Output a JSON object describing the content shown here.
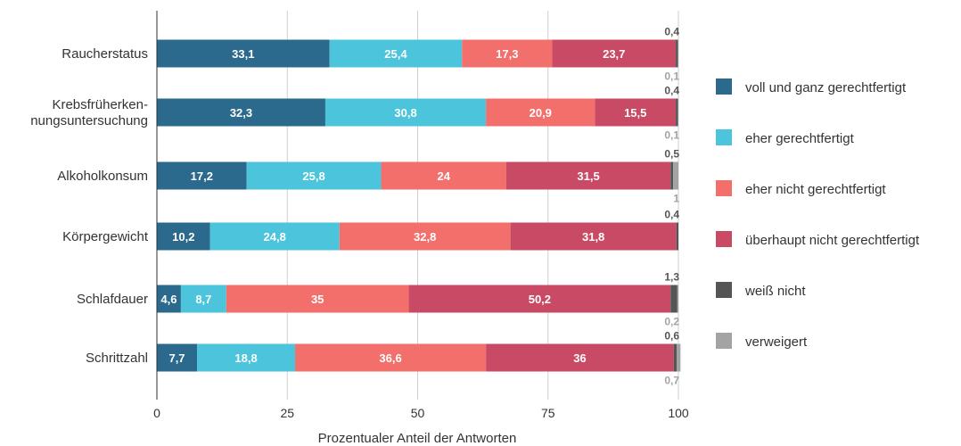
{
  "chart_data": {
    "type": "bar",
    "orientation": "horizontal",
    "stacked": true,
    "categories": [
      [
        "Raucherstatus"
      ],
      [
        "Krebsfrüherken-",
        "nungsuntersuchung"
      ],
      [
        "Alkoholkonsum"
      ],
      [
        "Körpergewicht"
      ],
      [
        "Schlafdauer"
      ],
      [
        "Schrittzahl"
      ]
    ],
    "series": [
      {
        "name": "voll und ganz gerechtfertigt",
        "color": "#2b6a8c",
        "values": [
          33.1,
          32.3,
          17.2,
          10.2,
          4.6,
          7.7
        ]
      },
      {
        "name": "eher gerechtfertigt",
        "color": "#4bc4dc",
        "values": [
          25.4,
          30.8,
          25.8,
          24.8,
          8.7,
          18.8
        ]
      },
      {
        "name": "eher nicht gerechtfertigt",
        "color": "#f26f6c",
        "values": [
          17.3,
          20.9,
          24,
          32.8,
          35,
          36.6
        ]
      },
      {
        "name": "überhaupt nicht gerechtfertigt",
        "color": "#c94a64",
        "values": [
          23.7,
          15.5,
          31.5,
          31.8,
          50.2,
          36
        ]
      },
      {
        "name": "weiß nicht",
        "color": "#555555",
        "values": [
          0.4,
          0.4,
          0.5,
          0.4,
          1.3,
          0.6
        ]
      },
      {
        "name": "verweigert",
        "color": "#a3a3a3",
        "values": [
          0.1,
          0.1,
          1,
          null,
          0.2,
          0.7
        ]
      }
    ],
    "xlabel": "Prozentualer Anteil der Antworten",
    "xlim": [
      0,
      100
    ],
    "xticks": [
      0,
      25,
      50,
      75,
      100
    ],
    "grid": true,
    "legend": "right"
  }
}
